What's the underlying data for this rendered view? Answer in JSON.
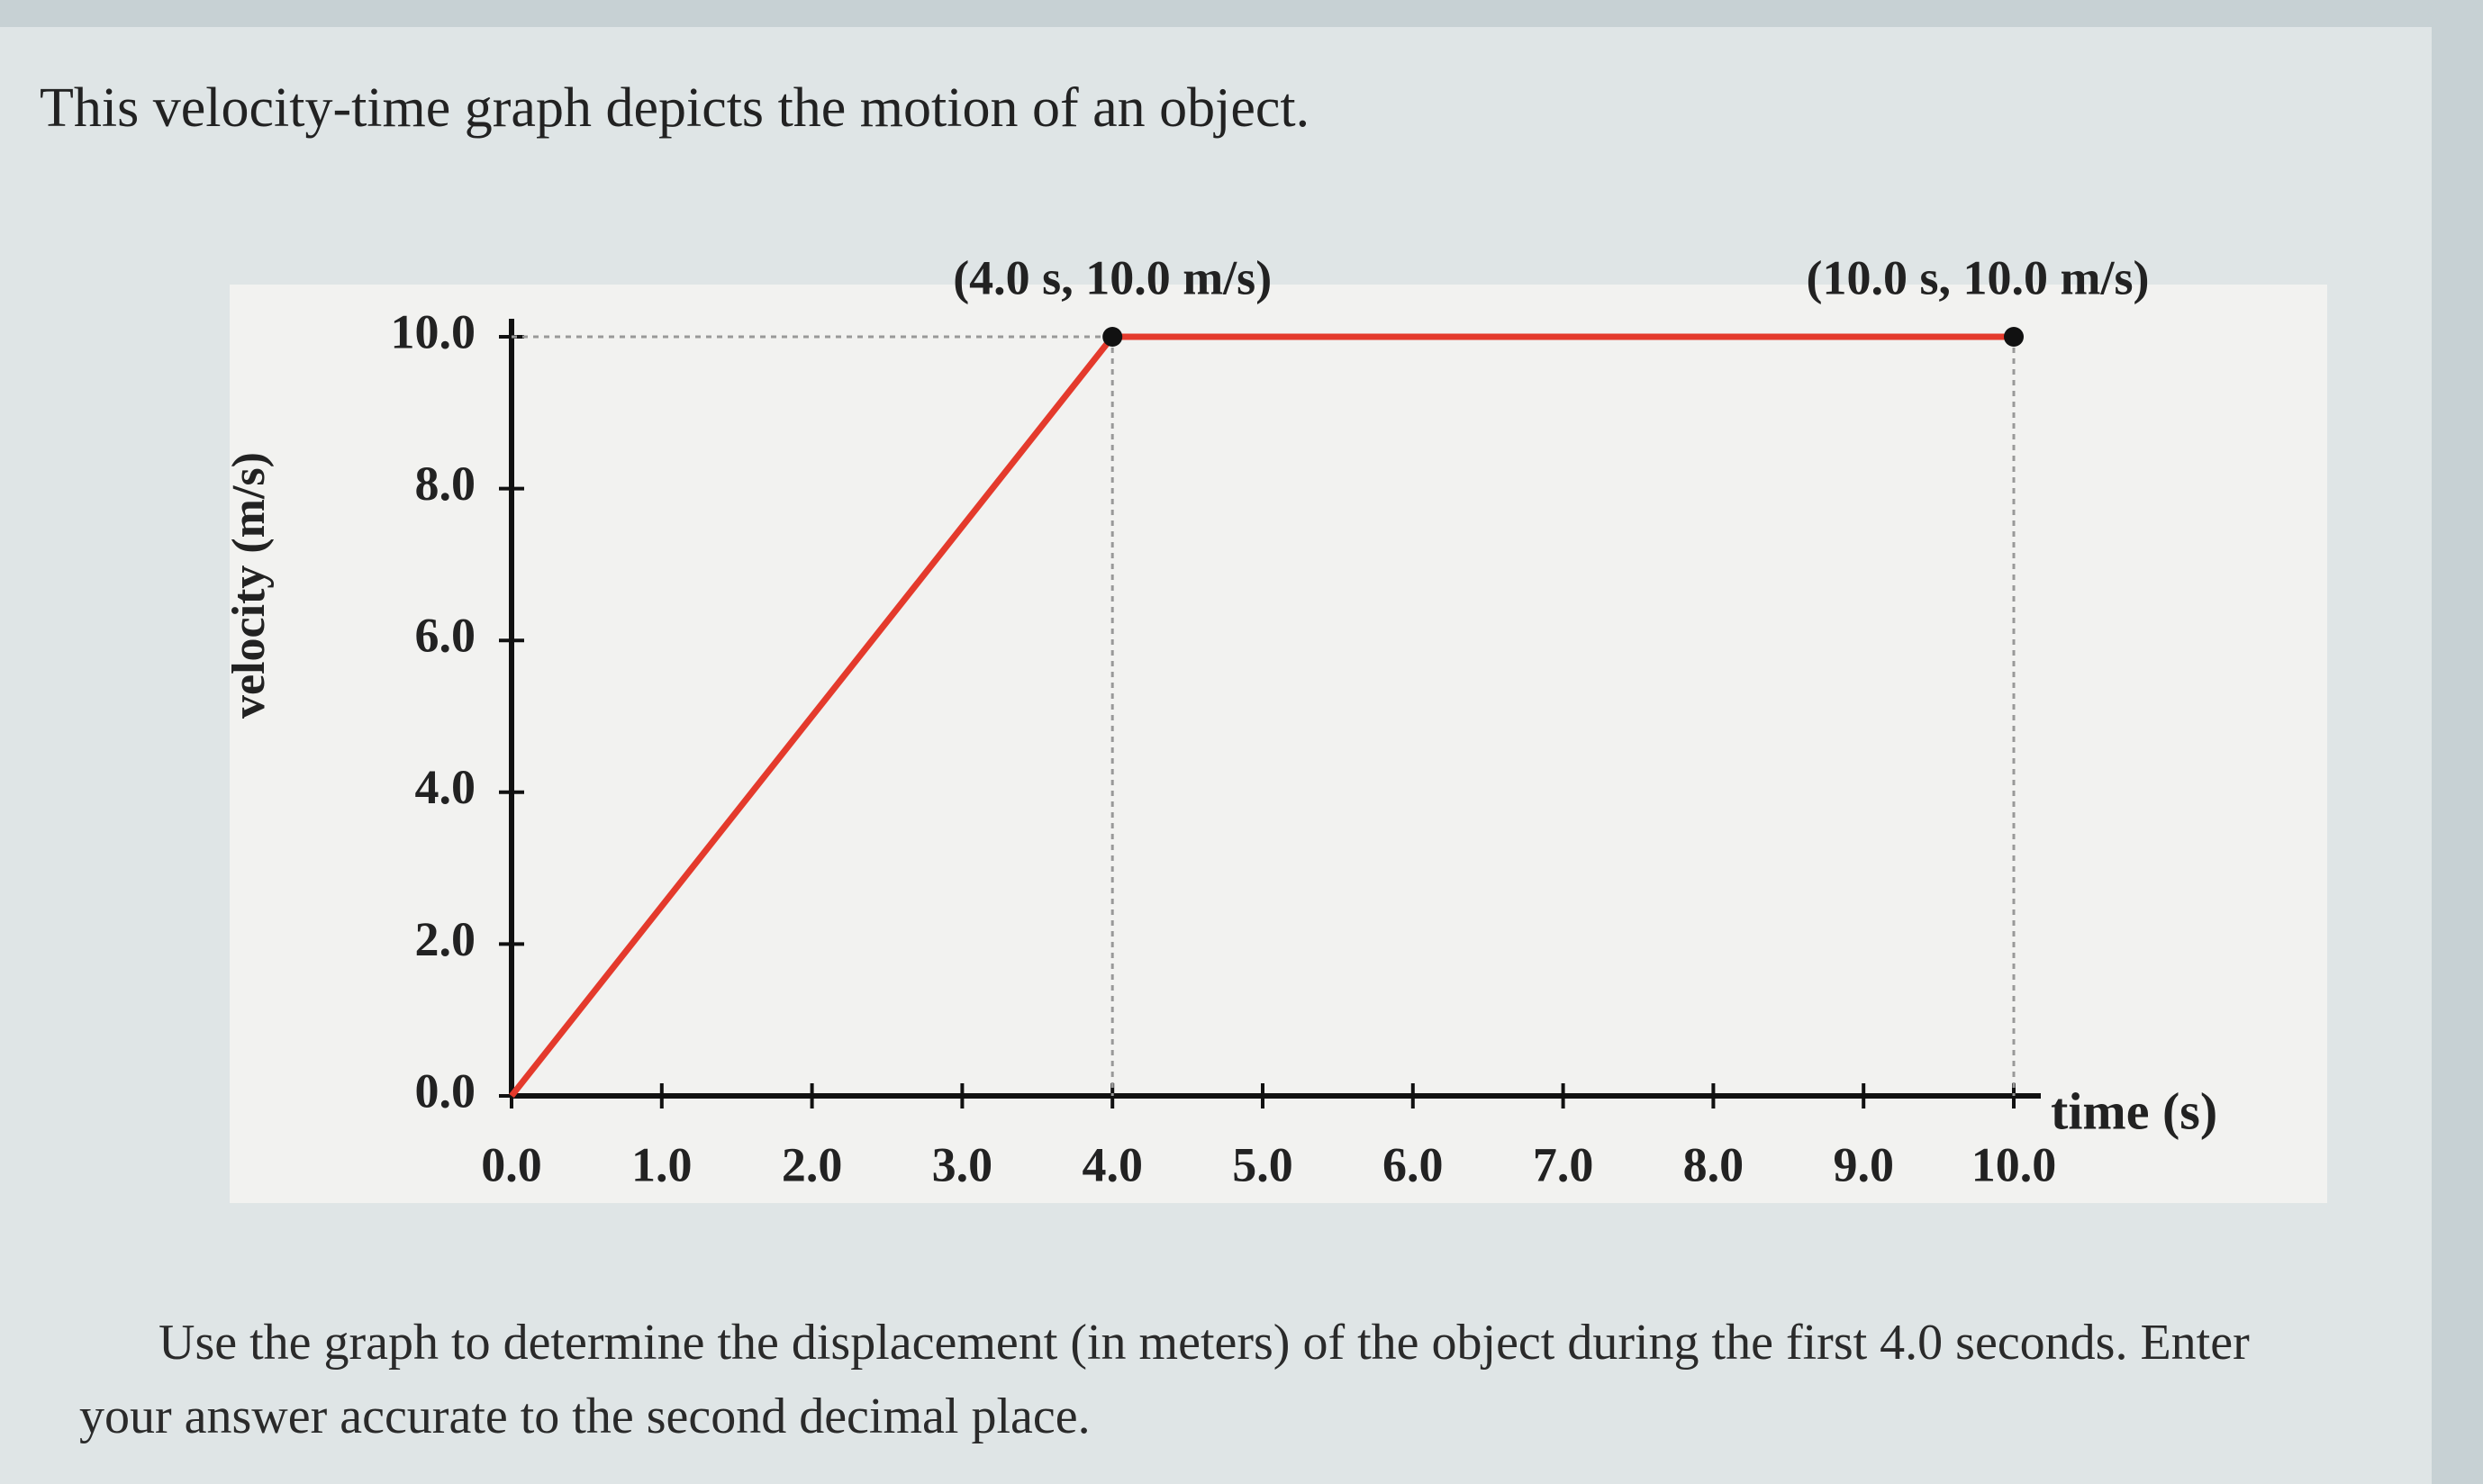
{
  "intro": "This velocity-time graph depicts the motion of an object.",
  "chart_data": {
    "type": "line",
    "x": [
      0,
      4,
      10
    ],
    "values": [
      0,
      10,
      10
    ],
    "color": "#e43a2c",
    "xlim": [
      0,
      10
    ],
    "ylim": [
      0,
      10
    ],
    "xticks": [
      {
        "value": 0,
        "label": "0.0"
      },
      {
        "value": 1,
        "label": "1.0"
      },
      {
        "value": 2,
        "label": "2.0"
      },
      {
        "value": 3,
        "label": "3.0"
      },
      {
        "value": 4,
        "label": "4.0"
      },
      {
        "value": 5,
        "label": "5.0"
      },
      {
        "value": 6,
        "label": "6.0"
      },
      {
        "value": 7,
        "label": "7.0"
      },
      {
        "value": 8,
        "label": "8.0"
      },
      {
        "value": 9,
        "label": "9.0"
      },
      {
        "value": 10,
        "label": "10.0"
      }
    ],
    "yticks": [
      {
        "value": 0,
        "label": "0.0"
      },
      {
        "value": 2,
        "label": "2.0"
      },
      {
        "value": 4,
        "label": "4.0"
      },
      {
        "value": 6,
        "label": "6.0"
      },
      {
        "value": 8,
        "label": "8.0"
      },
      {
        "value": 10,
        "label": "10.0"
      }
    ],
    "xlabel": "time (s)",
    "ylabel": "velocity (m/s)",
    "annotations": [
      {
        "text": "(4.0 s, 10.0 m/s)",
        "x": 4,
        "y": 10
      },
      {
        "text": "(10.0 s, 10.0 m/s)",
        "x": 10,
        "y": 10
      }
    ]
  },
  "question": "Use the graph to determine the displacement (in meters) of the object during the first 4.0 seconds. Enter your answer accurate to the second decimal place."
}
